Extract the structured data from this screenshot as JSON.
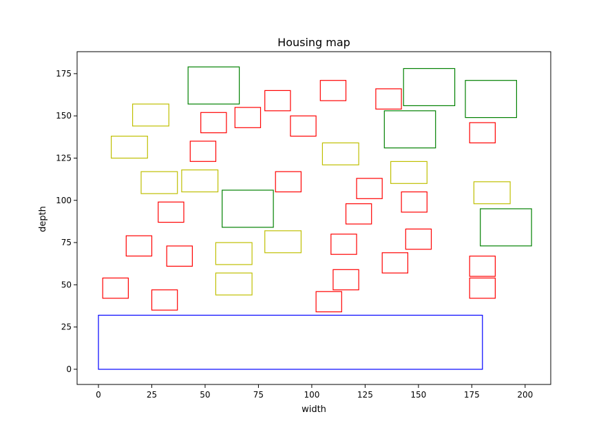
{
  "chart_data": {
    "type": "scatter",
    "title": "Housing map",
    "xlabel": "width",
    "ylabel": "depth",
    "xlim": [
      -10,
      212
    ],
    "ylim": [
      -9,
      188
    ],
    "xticks": [
      0,
      25,
      50,
      75,
      100,
      125,
      150,
      175,
      200
    ],
    "yticks": [
      0,
      25,
      50,
      75,
      100,
      125,
      150,
      175
    ],
    "grid": false,
    "legend": false,
    "series": [
      {
        "color": "#0000ff",
        "rects": [
          {
            "x": 0,
            "y": 0,
            "w": 180,
            "h": 32
          }
        ]
      },
      {
        "color": "#ff0000",
        "rects": [
          {
            "x": 2,
            "y": 42,
            "w": 12,
            "h": 12
          },
          {
            "x": 25,
            "y": 35,
            "w": 12,
            "h": 12
          },
          {
            "x": 13,
            "y": 67,
            "w": 12,
            "h": 12
          },
          {
            "x": 32,
            "y": 61,
            "w": 12,
            "h": 12
          },
          {
            "x": 28,
            "y": 87,
            "w": 12,
            "h": 12
          },
          {
            "x": 43,
            "y": 123,
            "w": 12,
            "h": 12
          },
          {
            "x": 48,
            "y": 140,
            "w": 12,
            "h": 12
          },
          {
            "x": 64,
            "y": 143,
            "w": 12,
            "h": 12
          },
          {
            "x": 78,
            "y": 153,
            "w": 12,
            "h": 12
          },
          {
            "x": 90,
            "y": 138,
            "w": 12,
            "h": 12
          },
          {
            "x": 83,
            "y": 105,
            "w": 12,
            "h": 12
          },
          {
            "x": 104,
            "y": 159,
            "w": 12,
            "h": 12
          },
          {
            "x": 130,
            "y": 154,
            "w": 12,
            "h": 12
          },
          {
            "x": 174,
            "y": 134,
            "w": 12,
            "h": 12
          },
          {
            "x": 121,
            "y": 101,
            "w": 12,
            "h": 12
          },
          {
            "x": 116,
            "y": 86,
            "w": 12,
            "h": 12
          },
          {
            "x": 142,
            "y": 93,
            "w": 12,
            "h": 12
          },
          {
            "x": 109,
            "y": 68,
            "w": 12,
            "h": 12
          },
          {
            "x": 144,
            "y": 71,
            "w": 12,
            "h": 12
          },
          {
            "x": 133,
            "y": 57,
            "w": 12,
            "h": 12
          },
          {
            "x": 110,
            "y": 47,
            "w": 12,
            "h": 12
          },
          {
            "x": 102,
            "y": 34,
            "w": 12,
            "h": 12
          },
          {
            "x": 174,
            "y": 55,
            "w": 12,
            "h": 12
          },
          {
            "x": 174,
            "y": 42,
            "w": 12,
            "h": 12
          }
        ]
      },
      {
        "color": "#bfbf00",
        "rects": [
          {
            "x": 16,
            "y": 144,
            "w": 17,
            "h": 13
          },
          {
            "x": 6,
            "y": 125,
            "w": 17,
            "h": 13
          },
          {
            "x": 20,
            "y": 104,
            "w": 17,
            "h": 13
          },
          {
            "x": 39,
            "y": 105,
            "w": 17,
            "h": 13
          },
          {
            "x": 55,
            "y": 62,
            "w": 17,
            "h": 13
          },
          {
            "x": 55,
            "y": 44,
            "w": 17,
            "h": 13
          },
          {
            "x": 78,
            "y": 69,
            "w": 17,
            "h": 13
          },
          {
            "x": 105,
            "y": 121,
            "w": 17,
            "h": 13
          },
          {
            "x": 137,
            "y": 110,
            "w": 17,
            "h": 13
          },
          {
            "x": 176,
            "y": 98,
            "w": 17,
            "h": 13
          }
        ]
      },
      {
        "color": "#008000",
        "rects": [
          {
            "x": 42,
            "y": 157,
            "w": 24,
            "h": 22
          },
          {
            "x": 58,
            "y": 84,
            "w": 24,
            "h": 22
          },
          {
            "x": 134,
            "y": 131,
            "w": 24,
            "h": 22
          },
          {
            "x": 143,
            "y": 156,
            "w": 24,
            "h": 22
          },
          {
            "x": 172,
            "y": 149,
            "w": 24,
            "h": 22
          },
          {
            "x": 179,
            "y": 73,
            "w": 24,
            "h": 22
          }
        ]
      }
    ]
  }
}
